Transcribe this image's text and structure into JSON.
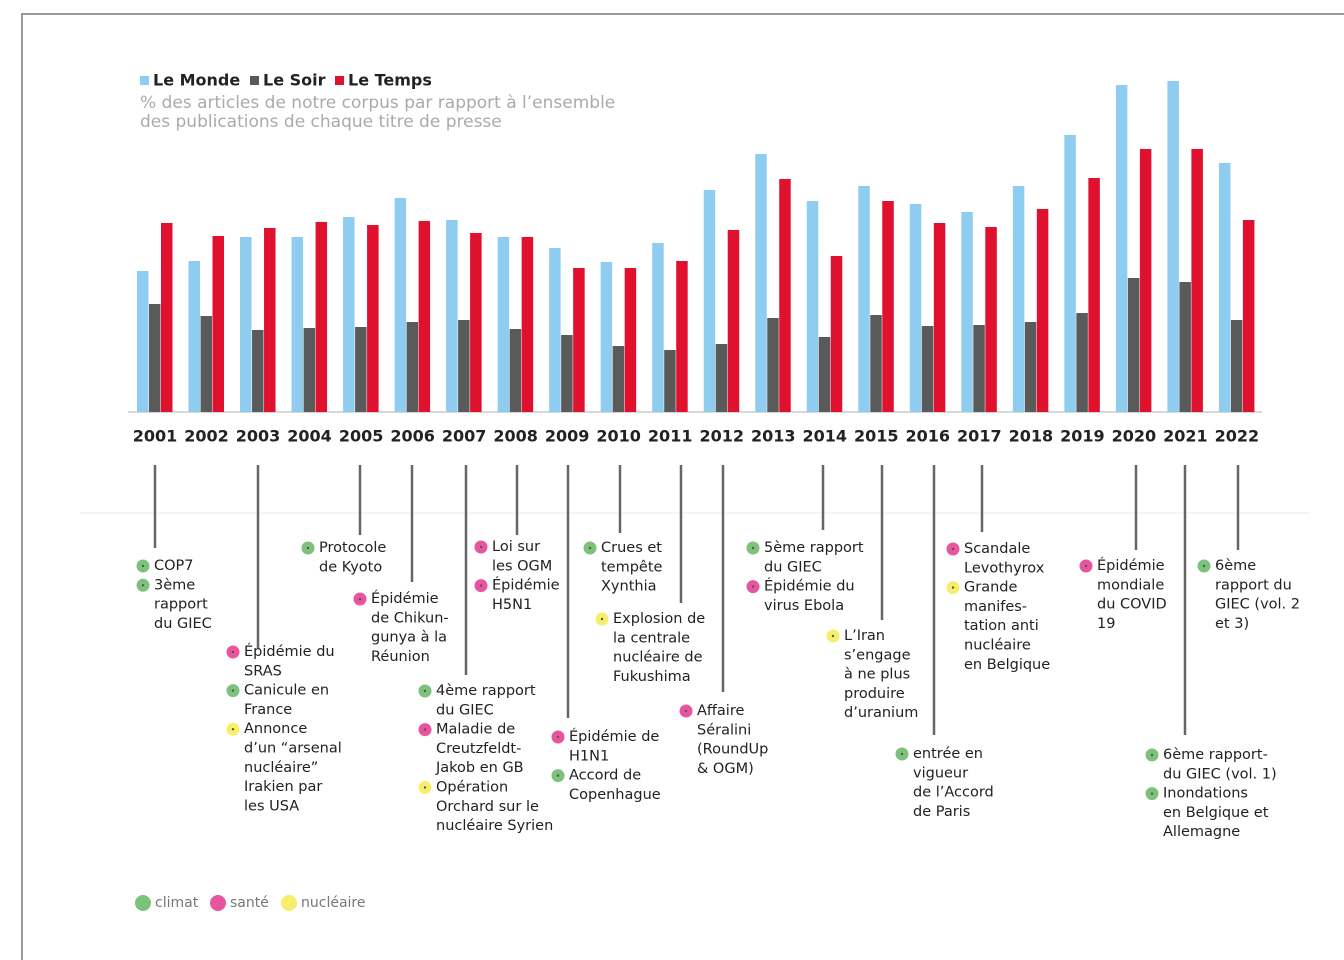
{
  "chart_data": {
    "type": "bar",
    "subtitle": [
      "% des articles de notre corpus par rapport à l’ensemble",
      "des publications de chaque titre de presse"
    ],
    "categories": [
      "2001",
      "2002",
      "2003",
      "2004",
      "2005",
      "2006",
      "2007",
      "2008",
      "2009",
      "2010",
      "2011",
      "2012",
      "2013",
      "2014",
      "2015",
      "2016",
      "2017",
      "2018",
      "2019",
      "2020",
      "2021",
      "2022"
    ],
    "ylim": [
      0,
      350
    ],
    "legend": "top-left",
    "series": [
      {
        "name": "Le Monde",
        "color": "#8ecdf0",
        "values": [
          141,
          151,
          175,
          175,
          195,
          214,
          192,
          175,
          164,
          150,
          169,
          222,
          258,
          211,
          226,
          208,
          200,
          226,
          277,
          327,
          331,
          249
        ]
      },
      {
        "name": "Le Soir",
        "color": "#5a5a5a",
        "values": [
          108,
          96,
          82,
          84,
          85,
          90,
          92,
          83,
          77,
          66,
          62,
          68,
          94,
          75,
          97,
          86,
          87,
          90,
          99,
          134,
          130,
          92
        ]
      },
      {
        "name": "Le Temps",
        "color": "#e0102f",
        "values": [
          189,
          176,
          184,
          190,
          187,
          191,
          179,
          175,
          144,
          144,
          151,
          182,
          233,
          156,
          211,
          189,
          185,
          203,
          234,
          263,
          263,
          192
        ]
      }
    ],
    "event_categories": [
      {
        "name": "climat",
        "color": "#7dc27a"
      },
      {
        "name": "santé",
        "color": "#e8559f"
      },
      {
        "name": "nucléaire",
        "color": "#f7ef6b"
      }
    ],
    "events": [
      {
        "year": 0,
        "items": [
          {
            "category": 0,
            "lines": [
              "COP7"
            ]
          },
          {
            "category": 0,
            "lines": [
              "3ème",
              "rapport",
              "du GIEC"
            ]
          }
        ]
      },
      {
        "year": 2,
        "items": [
          {
            "category": 1,
            "lines": [
              "Épidémie du",
              "SRAS"
            ]
          },
          {
            "category": 0,
            "lines": [
              "Canicule en",
              "France"
            ]
          },
          {
            "category": 2,
            "lines": [
              "Annonce",
              "d’un “arsenal",
              "nucléaire”",
              "Irakien par",
              "les USA"
            ]
          }
        ]
      },
      {
        "year": 4,
        "items": [
          {
            "category": 0,
            "lines": [
              "Protocole",
              "de Kyoto"
            ]
          }
        ]
      },
      {
        "year": 5,
        "items": [
          {
            "category": 1,
            "lines": [
              "Épidémie",
              "de Chikun-",
              "gunya  à la",
              "Réunion"
            ]
          }
        ]
      },
      {
        "year": 6,
        "items": [
          {
            "category": 0,
            "lines": [
              "4ème rapport",
              "du GIEC"
            ]
          },
          {
            "category": 1,
            "lines": [
              "Maladie de",
              "Creutzfeldt-",
              "Jakob en GB"
            ]
          },
          {
            "category": 2,
            "lines": [
              "Opération",
              "Orchard sur le",
              "nucléaire Syrien"
            ]
          }
        ]
      },
      {
        "year": 7,
        "items": [
          {
            "category": 1,
            "lines": [
              "Loi sur",
              "les OGM"
            ]
          },
          {
            "category": 1,
            "lines": [
              "Épidémie",
              "H5N1"
            ]
          }
        ]
      },
      {
        "year": 8,
        "items": [
          {
            "category": 1,
            "lines": [
              "Épidémie de",
              "H1N1"
            ]
          },
          {
            "category": 0,
            "lines": [
              "Accord de",
              "Copenhague"
            ]
          }
        ]
      },
      {
        "year": 9,
        "items": [
          {
            "category": 0,
            "lines": [
              "Crues et",
              "tempête",
              "Xynthia"
            ]
          }
        ]
      },
      {
        "year": 10,
        "items": [
          {
            "category": 2,
            "lines": [
              "Explosion de",
              "la centrale",
              "nucléaire de",
              "Fukushima"
            ]
          }
        ]
      },
      {
        "year": 11,
        "items": [
          {
            "category": 1,
            "lines": [
              "Affaire",
              "Séralini",
              "(RoundUp",
              "& OGM)"
            ]
          }
        ]
      },
      {
        "year": 13,
        "items": [
          {
            "category": 0,
            "lines": [
              "5ème rapport",
              "du GIEC"
            ]
          },
          {
            "category": 1,
            "lines": [
              "Épidémie du",
              "virus Ebola"
            ]
          }
        ]
      },
      {
        "year": 14,
        "items": [
          {
            "category": 2,
            "lines": [
              "L’Iran",
              "s’engage",
              "à ne plus",
              "produire",
              "d’uranium"
            ]
          }
        ]
      },
      {
        "year": 15,
        "items": [
          {
            "category": 0,
            "lines": [
              "entrée en",
              "vigueur",
              "de l’Accord",
              "de Paris"
            ]
          }
        ]
      },
      {
        "year": 16,
        "items": [
          {
            "category": 1,
            "lines": [
              "Scandale",
              "Levothyrox"
            ]
          },
          {
            "category": 2,
            "lines": [
              "Grande",
              "manifes-",
              "tation anti",
              "nucléaire",
              "en Belgique"
            ]
          }
        ]
      },
      {
        "year": 19,
        "items": [
          {
            "category": 1,
            "lines": [
              "Épidémie",
              "mondiale",
              "du COVID",
              "19"
            ]
          }
        ]
      },
      {
        "year": 20,
        "items": [
          {
            "category": 0,
            "lines": [
              "6ème rapport-",
              "du GIEC (vol. 1)"
            ]
          },
          {
            "category": 0,
            "lines": [
              "Inondations",
              "en Belgique et",
              "Allemagne"
            ]
          }
        ]
      },
      {
        "year": 21,
        "items": [
          {
            "category": 0,
            "lines": [
              "6ème",
              "rapport du",
              "GIEC (vol. 2",
              "et 3)"
            ]
          }
        ]
      }
    ]
  }
}
